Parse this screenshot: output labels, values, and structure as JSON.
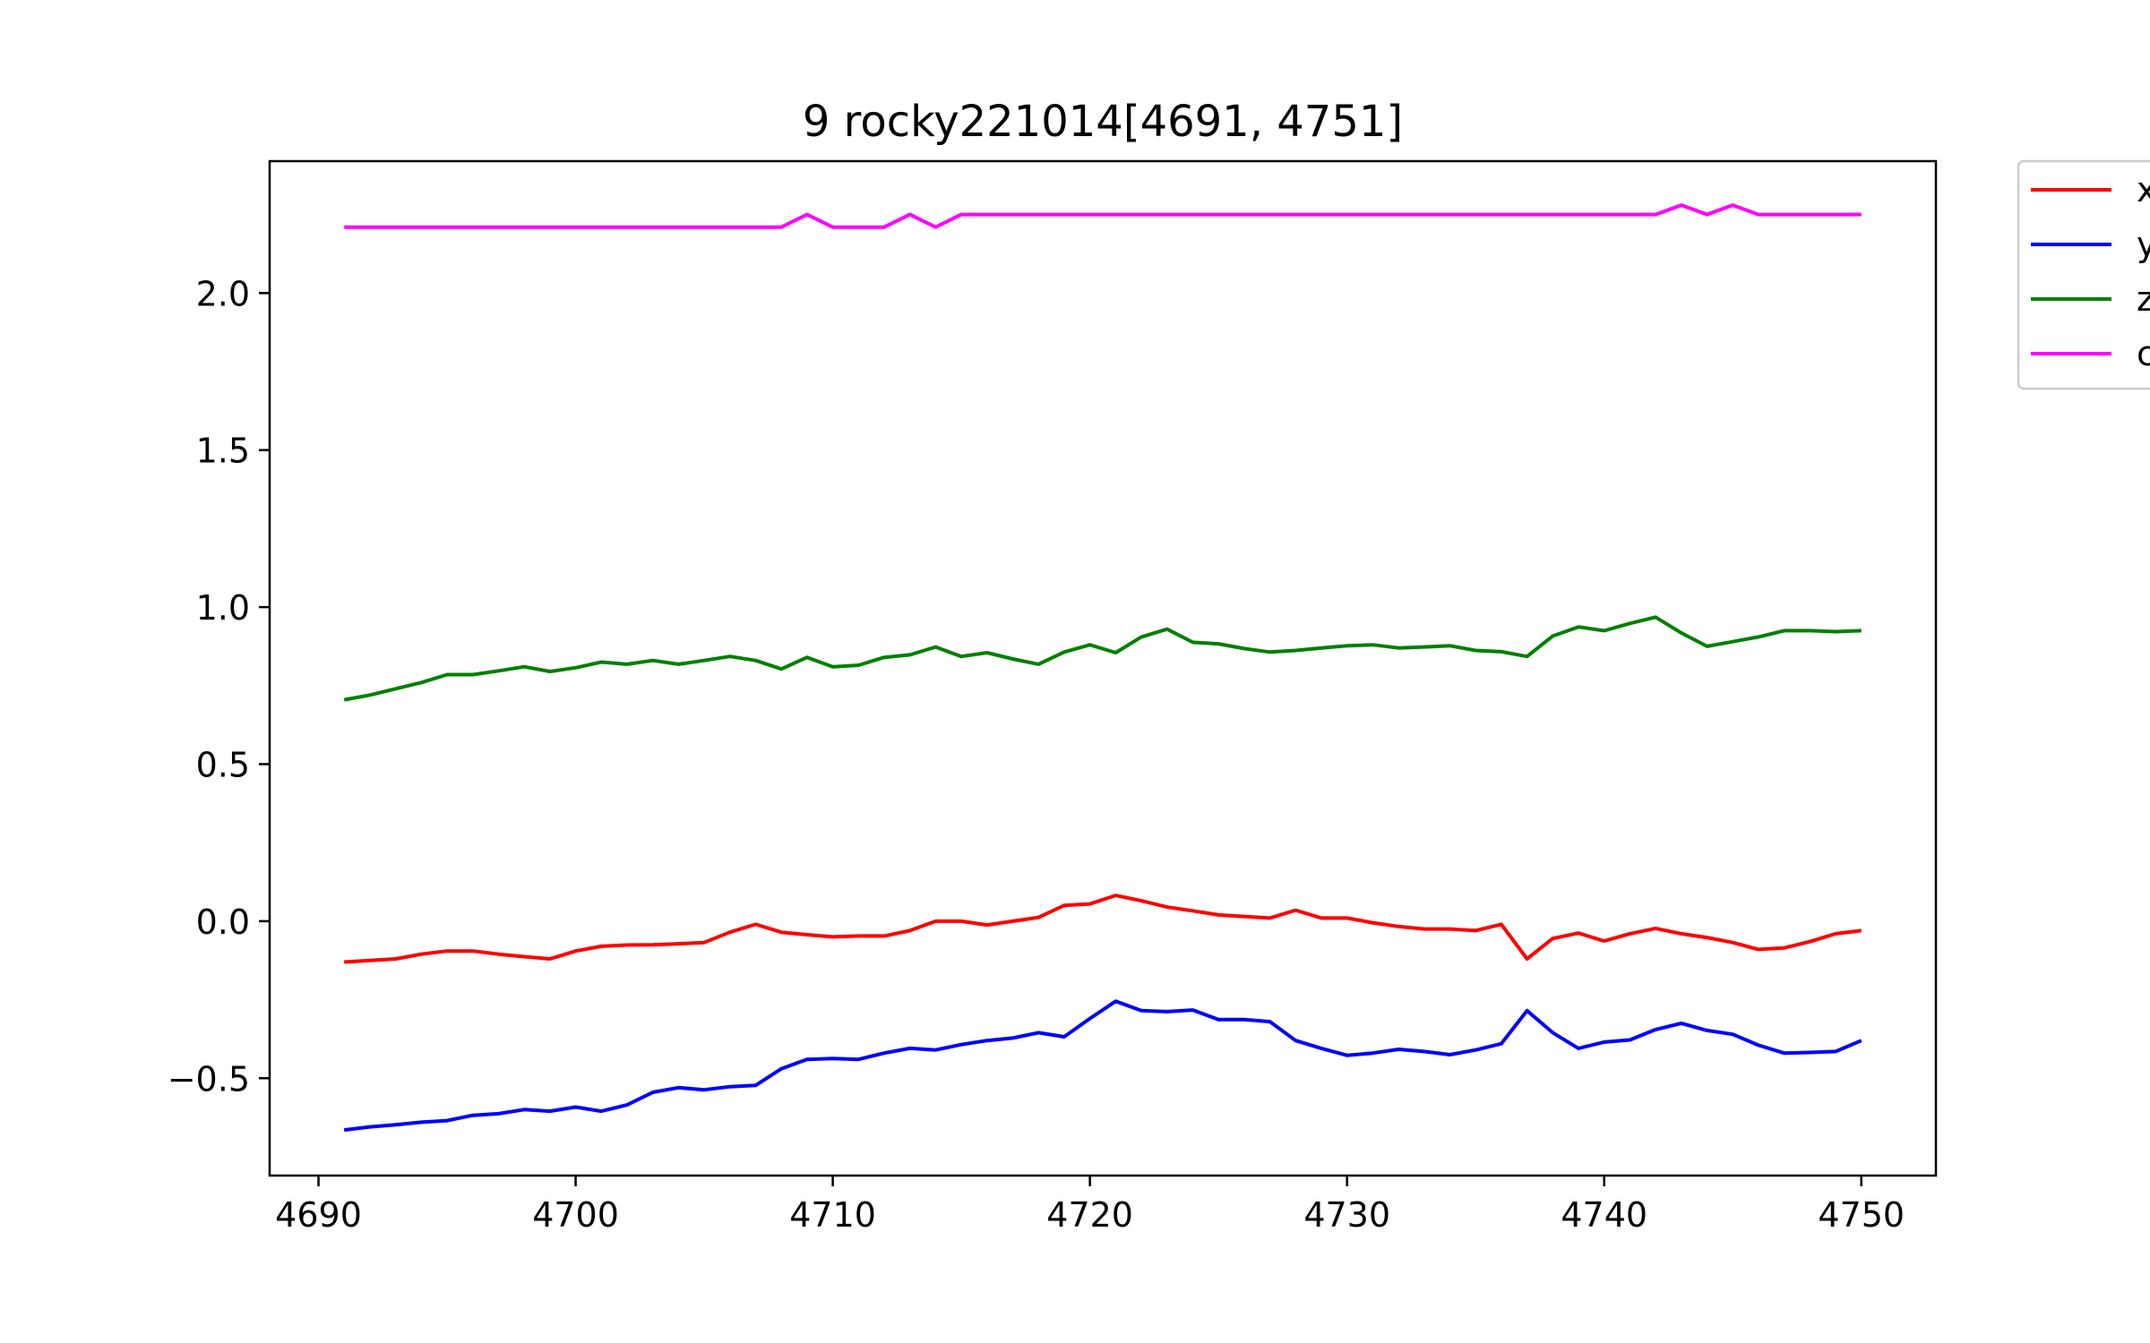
{
  "chart_data": {
    "type": "line",
    "title": "9 rocky221014[4691, 4751]",
    "xlabel": "",
    "ylabel": "",
    "xlim": [
      4688.1,
      4752.9
    ],
    "ylim": [
      -0.81,
      2.42
    ],
    "xticks": [
      4690,
      4700,
      4710,
      4720,
      4730,
      4740,
      4750
    ],
    "yticks": [
      -0.5,
      0.0,
      0.5,
      1.0,
      1.5,
      2.0
    ],
    "ytick_labels": [
      "−0.5",
      "0.0",
      "0.5",
      "1.0",
      "1.5",
      "2.0"
    ],
    "grid": false,
    "legend_position": "outside-top-right",
    "x": [
      4691,
      4692,
      4693,
      4694,
      4695,
      4696,
      4697,
      4698,
      4699,
      4700,
      4701,
      4702,
      4703,
      4704,
      4705,
      4706,
      4707,
      4708,
      4709,
      4710,
      4711,
      4712,
      4713,
      4714,
      4715,
      4716,
      4717,
      4718,
      4719,
      4720,
      4721,
      4722,
      4723,
      4724,
      4725,
      4726,
      4727,
      4728,
      4729,
      4730,
      4731,
      4732,
      4733,
      4734,
      4735,
      4736,
      4737,
      4738,
      4739,
      4740,
      4741,
      4742,
      4743,
      4744,
      4745,
      4746,
      4747,
      4748,
      4749,
      4750
    ],
    "series": [
      {
        "name": "x",
        "color": "#ff0000",
        "values": [
          -0.13,
          -0.125,
          -0.12,
          -0.105,
          -0.095,
          -0.095,
          -0.105,
          -0.113,
          -0.12,
          -0.095,
          -0.08,
          -0.076,
          -0.075,
          -0.072,
          -0.068,
          -0.035,
          -0.01,
          -0.035,
          -0.043,
          -0.05,
          -0.047,
          -0.047,
          -0.03,
          0.0,
          0.0,
          -0.012,
          0.0,
          0.012,
          0.05,
          0.055,
          0.082,
          0.065,
          0.045,
          0.033,
          0.02,
          0.015,
          0.01,
          0.035,
          0.01,
          0.01,
          -0.005,
          -0.017,
          -0.025,
          -0.025,
          -0.03,
          -0.01,
          -0.12,
          -0.055,
          -0.038,
          -0.063,
          -0.04,
          -0.023,
          -0.04,
          -0.052,
          -0.068,
          -0.09,
          -0.085,
          -0.065,
          -0.04,
          -0.03
        ]
      },
      {
        "name": "y",
        "color": "#0000ff",
        "values": [
          -0.665,
          -0.655,
          -0.648,
          -0.64,
          -0.635,
          -0.618,
          -0.613,
          -0.6,
          -0.605,
          -0.592,
          -0.605,
          -0.585,
          -0.545,
          -0.53,
          -0.537,
          -0.527,
          -0.523,
          -0.47,
          -0.44,
          -0.437,
          -0.44,
          -0.42,
          -0.405,
          -0.41,
          -0.393,
          -0.38,
          -0.372,
          -0.355,
          -0.368,
          -0.31,
          -0.255,
          -0.285,
          -0.288,
          -0.283,
          -0.313,
          -0.313,
          -0.32,
          -0.38,
          -0.405,
          -0.427,
          -0.42,
          -0.408,
          -0.415,
          -0.425,
          -0.41,
          -0.39,
          -0.285,
          -0.355,
          -0.405,
          -0.385,
          -0.378,
          -0.345,
          -0.325,
          -0.348,
          -0.36,
          -0.395,
          -0.42,
          -0.418,
          -0.415,
          -0.38
        ]
      },
      {
        "name": "z",
        "color": "#008000",
        "values": [
          0.705,
          0.72,
          0.74,
          0.76,
          0.785,
          0.785,
          0.797,
          0.81,
          0.795,
          0.807,
          0.825,
          0.818,
          0.83,
          0.818,
          0.83,
          0.843,
          0.83,
          0.803,
          0.84,
          0.81,
          0.815,
          0.84,
          0.848,
          0.873,
          0.843,
          0.855,
          0.835,
          0.818,
          0.857,
          0.88,
          0.855,
          0.905,
          0.93,
          0.888,
          0.883,
          0.868,
          0.857,
          0.862,
          0.87,
          0.877,
          0.88,
          0.87,
          0.873,
          0.877,
          0.862,
          0.858,
          0.843,
          0.908,
          0.937,
          0.925,
          0.948,
          0.968,
          0.918,
          0.875,
          0.89,
          0.905,
          0.925,
          0.925,
          0.922,
          0.925
        ]
      },
      {
        "name": "c",
        "color": "#ff00ff",
        "values": [
          2.21,
          2.21,
          2.21,
          2.21,
          2.21,
          2.21,
          2.21,
          2.21,
          2.21,
          2.21,
          2.21,
          2.21,
          2.21,
          2.21,
          2.21,
          2.21,
          2.21,
          2.21,
          2.25,
          2.21,
          2.21,
          2.21,
          2.25,
          2.21,
          2.25,
          2.25,
          2.25,
          2.25,
          2.25,
          2.25,
          2.25,
          2.25,
          2.25,
          2.25,
          2.25,
          2.25,
          2.25,
          2.25,
          2.25,
          2.25,
          2.25,
          2.25,
          2.25,
          2.25,
          2.25,
          2.25,
          2.25,
          2.25,
          2.25,
          2.25,
          2.25,
          2.25,
          2.28,
          2.25,
          2.28,
          2.25,
          2.25,
          2.25,
          2.25,
          2.25
        ]
      }
    ]
  }
}
